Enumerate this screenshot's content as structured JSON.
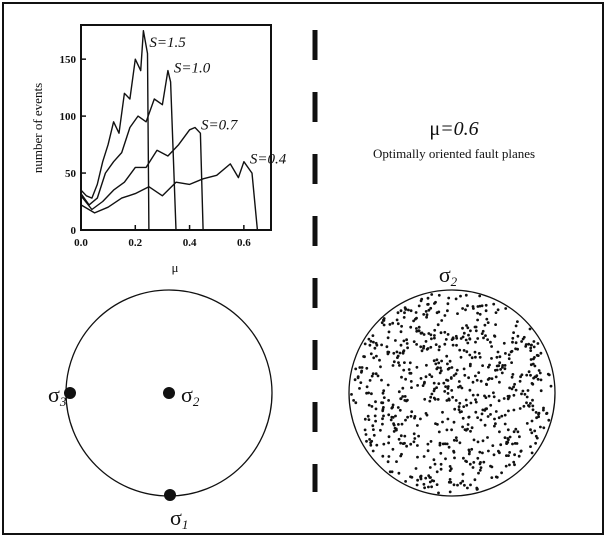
{
  "chart_data": {
    "type": "line",
    "xlabel": "μ",
    "ylabel": "number of events",
    "xlim": [
      0,
      0.7
    ],
    "ylim": [
      0,
      180
    ],
    "x_ticks": [
      "0.0",
      "0.2",
      "0.4",
      "0.6"
    ],
    "y_ticks": [
      "0",
      "50",
      "100",
      "150"
    ],
    "series": [
      {
        "name": "S=1.5",
        "label_prefix": "S=",
        "label_value": "1.5",
        "x": [
          0.0,
          0.02,
          0.04,
          0.06,
          0.08,
          0.1,
          0.12,
          0.14,
          0.16,
          0.18,
          0.2,
          0.22,
          0.23,
          0.245,
          0.25
        ],
        "values": [
          35,
          30,
          28,
          40,
          60,
          75,
          95,
          85,
          120,
          115,
          150,
          140,
          175,
          155,
          0
        ]
      },
      {
        "name": "S=1.0",
        "label_prefix": "S=",
        "label_value": "1.0",
        "x": [
          0.0,
          0.03,
          0.06,
          0.09,
          0.12,
          0.15,
          0.18,
          0.21,
          0.24,
          0.27,
          0.3,
          0.32,
          0.33,
          0.35
        ],
        "values": [
          32,
          22,
          28,
          50,
          60,
          68,
          90,
          100,
          95,
          115,
          110,
          140,
          130,
          0
        ]
      },
      {
        "name": "S=0.7",
        "label_prefix": "S=",
        "label_value": "0.7",
        "x": [
          0.0,
          0.04,
          0.08,
          0.12,
          0.16,
          0.2,
          0.24,
          0.28,
          0.32,
          0.36,
          0.4,
          0.42,
          0.44,
          0.45
        ],
        "values": [
          30,
          18,
          25,
          35,
          42,
          55,
          55,
          70,
          65,
          75,
          88,
          90,
          85,
          0
        ]
      },
      {
        "name": "S=0.4",
        "label_prefix": "S=",
        "label_value": "0.4",
        "x": [
          0.0,
          0.05,
          0.1,
          0.15,
          0.2,
          0.25,
          0.3,
          0.35,
          0.4,
          0.45,
          0.5,
          0.55,
          0.58,
          0.6,
          0.63,
          0.65
        ],
        "values": [
          22,
          15,
          20,
          28,
          32,
          38,
          30,
          42,
          40,
          45,
          48,
          58,
          46,
          60,
          50,
          0
        ]
      }
    ]
  },
  "right_panel": {
    "mu_symbol": "μ",
    "mu_value": "=0.6",
    "caption": "Optimally oriented fault planes"
  },
  "stereonet_left": {
    "stress_axes": [
      {
        "symbol": "σ",
        "subscript": "3",
        "label_side": "left"
      },
      {
        "symbol": "σ",
        "subscript": "2",
        "label_side": "right"
      },
      {
        "symbol": "σ",
        "subscript": "1",
        "label_side": "below"
      }
    ]
  },
  "stereonet_right": {
    "title_symbol": "σ",
    "title_subscript": "2",
    "point_count": 720
  }
}
